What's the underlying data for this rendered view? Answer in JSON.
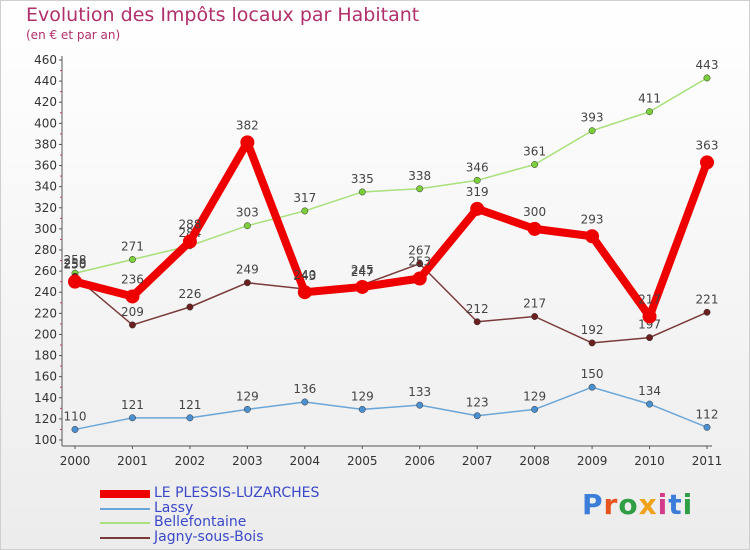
{
  "title": "Evolution des Impôts locaux par Habitant",
  "subtitle": "(en € et par an)",
  "chart_data": {
    "type": "line",
    "title": "Evolution des Impôts locaux par Habitant",
    "ylabel": "(en € et par an)",
    "xlabel": "",
    "ylim": [
      100,
      460
    ],
    "ytick_step": 20,
    "grid": false,
    "legend_position": "bottom-left",
    "categories": [
      "2000",
      "2001",
      "2002",
      "2003",
      "2004",
      "2005",
      "2006",
      "2007",
      "2008",
      "2009",
      "2010",
      "2011"
    ],
    "series": [
      {
        "name": "Lassy",
        "color": "#6aa6d8",
        "point_color": "#4a90d0",
        "values": [
          110,
          121,
          121,
          129,
          136,
          129,
          133,
          123,
          129,
          150,
          134,
          112
        ]
      },
      {
        "name": "Bellefontaine",
        "color": "#a8e07a",
        "point_color": "#7bcf3a",
        "values": [
          258,
          271,
          284,
          303,
          317,
          335,
          338,
          346,
          361,
          393,
          411,
          443
        ]
      },
      {
        "name": "Jagny-sous-Bois",
        "color": "#7a3a3a",
        "point_color": "#6b1f1f",
        "values": [
          255,
          209,
          226,
          249,
          243,
          247,
          267,
          212,
          217,
          192,
          197,
          221
        ]
      },
      {
        "name": "LE PLESSIS-LUZARCHES",
        "color": "#ee0000",
        "point_color": "#ee0000",
        "bold": true,
        "values": [
          250,
          236,
          288,
          382,
          240,
          245,
          253,
          319,
          300,
          293,
          217,
          363
        ]
      }
    ],
    "legend_order": [
      "LE PLESSIS-LUZARCHES",
      "Lassy",
      "Bellefontaine",
      "Jagny-sous-Bois"
    ]
  },
  "logo": {
    "text": "Proxiti",
    "colors": [
      "#3b7dd8",
      "#e8541f",
      "#2f9e44",
      "#f0a21b",
      "#d43a8a",
      "#3b7dd8",
      "#2f9e44"
    ]
  }
}
